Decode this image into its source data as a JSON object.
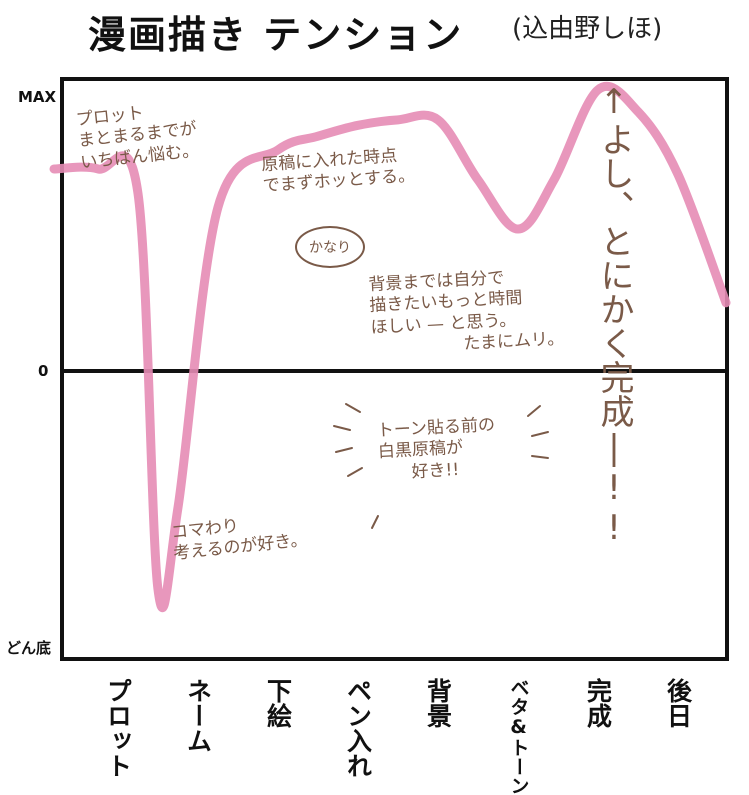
{
  "chart_data": {
    "type": "line",
    "title": "漫画描き テンション",
    "author": "(込由野しほ)",
    "y_ticks": {
      "max": "MAX",
      "zero": "0",
      "min": "どん底"
    },
    "ylim": [
      -100,
      100
    ],
    "categories": [
      "プロット",
      "ネーム",
      "下絵",
      "ペン入れ",
      "背景",
      "ベタ&トーン",
      "完成",
      "後日"
    ],
    "series": [
      {
        "color": "#e58cb5",
        "x": [
          -0.8,
          -0.25,
          0.25,
          0.5,
          0.75,
          1.25,
          2.0,
          2.5,
          3.0,
          3.5,
          4.0,
          4.5,
          5.0,
          5.45,
          6.0,
          6.5,
          7.0,
          7.6
        ],
        "y": [
          74,
          74,
          65,
          -80,
          -50,
          60,
          81,
          86,
          90,
          92,
          92,
          70,
          52,
          70,
          103,
          95,
          72,
          25
        ]
      }
    ],
    "annotations": {
      "plot": "プロット\nまとまるまでが\nいちばん悩む。",
      "genko": "原稿に入れた時点\nでまずホッとする。",
      "kanari": "かなり",
      "haikei": "背景までは自分で\n描きたいもっと時間\nほしい — と思う。\n                 たまにムリ。",
      "tone": "トーン貼る前の\n白黒原稿が\n      好き!!",
      "koma": "コマわり\n考えるのが好き。",
      "kansei": "↑よし、とにかく完成|!!"
    },
    "grid": false
  }
}
